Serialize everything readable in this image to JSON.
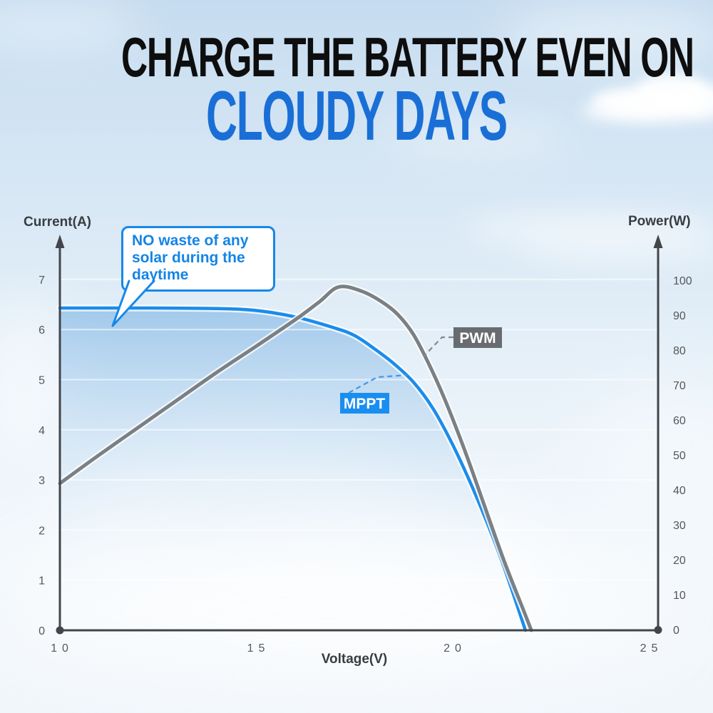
{
  "title": {
    "line1": "CHARGE THE BATTERY EVEN ON",
    "line2": "CLOUDY DAYS"
  },
  "callout": {
    "text": "NO waste of any solar during the daytime"
  },
  "labels": {
    "pwm": "PWM",
    "mppt": "MPPT"
  },
  "colors": {
    "title_accent": "#1a6fd6",
    "mppt_line": "#1b8ceb",
    "pwm_line": "#7b8084",
    "mppt_badge": "#1a8ef0",
    "pwm_badge": "#686c70",
    "axis": "#42464a",
    "callout_blue": "#1788e8"
  },
  "chart_data": {
    "type": "line",
    "title": "",
    "xlabel": "Voltage(V)",
    "ylabel_left": "Current(A)",
    "ylabel_right": "Power(W)",
    "x_ticks": [
      10,
      15,
      20,
      25
    ],
    "y_left_ticks": [
      7,
      6,
      5,
      4,
      3,
      2,
      1,
      0
    ],
    "y_right_ticks": [
      100,
      90,
      80,
      70,
      60,
      50,
      40,
      30,
      20,
      10,
      0
    ],
    "xlim": [
      10,
      25.3
    ],
    "ylim_left": [
      0,
      7.8
    ],
    "ylim_right": [
      0,
      111
    ],
    "grid": "horizontal white lines at each left-axis unit",
    "legend_position": "inline badges on curves",
    "series": [
      {
        "name": "MPPT",
        "color": "#1b8ceb",
        "axis": "left",
        "fill_under": true,
        "x": [
          10,
          12,
          14,
          15,
          16,
          17,
          17.5,
          18,
          18.5,
          19,
          19.5,
          20,
          20.5,
          21,
          21.4,
          21.85
        ],
        "y": [
          6.43,
          6.43,
          6.42,
          6.38,
          6.25,
          6.03,
          5.88,
          5.62,
          5.32,
          4.95,
          4.42,
          3.7,
          2.85,
          1.9,
          1.05,
          0
        ]
      },
      {
        "name": "PWM",
        "color": "#7b8084",
        "axis": "left",
        "fill_under": false,
        "x": [
          10,
          11,
          12,
          13,
          14,
          15,
          16,
          16.6,
          17.1,
          17.7,
          18.2,
          18.6,
          19,
          19.4,
          19.8,
          20.3,
          20.8,
          21.3,
          21.8,
          22.0
        ],
        "y": [
          2.93,
          3.5,
          4.05,
          4.6,
          5.15,
          5.67,
          6.2,
          6.55,
          6.85,
          6.76,
          6.55,
          6.3,
          5.9,
          5.3,
          4.6,
          3.6,
          2.5,
          1.4,
          0.4,
          0
        ]
      }
    ]
  }
}
